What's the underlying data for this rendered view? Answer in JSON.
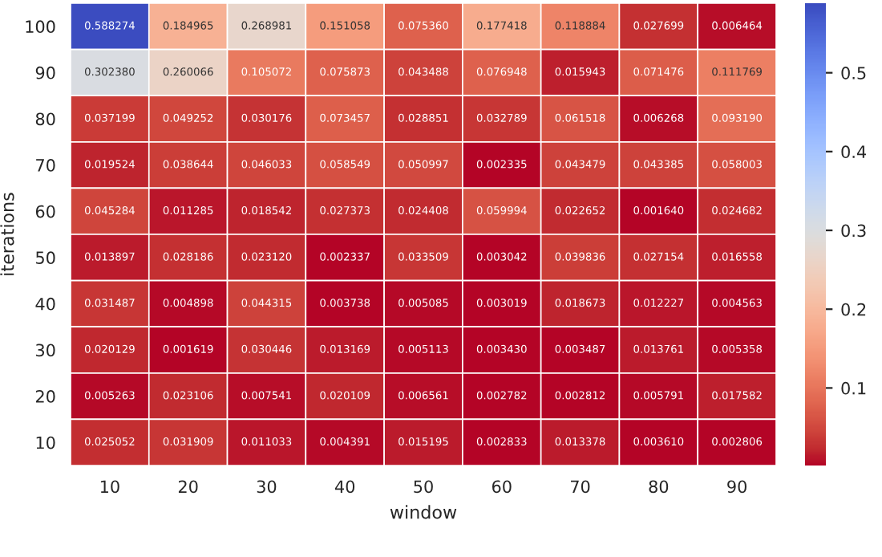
{
  "chart_data": {
    "type": "heatmap",
    "xlabel": "window",
    "ylabel": "iterations",
    "categories": [
      "10",
      "20",
      "30",
      "40",
      "50",
      "60",
      "70",
      "80",
      "90"
    ],
    "y_categories": [
      "100",
      "90",
      "80",
      "70",
      "60",
      "50",
      "40",
      "30",
      "20",
      "10"
    ],
    "cells": [
      [
        0.588274,
        0.184965,
        0.268981,
        0.151058,
        0.07536,
        0.177418,
        0.118884,
        0.027699,
        0.006464
      ],
      [
        0.30238,
        0.260066,
        0.105072,
        0.075873,
        0.043488,
        0.076948,
        0.015943,
        0.071476,
        0.111769
      ],
      [
        0.037199,
        0.049252,
        0.030176,
        0.073457,
        0.028851,
        0.032789,
        0.061518,
        0.006268,
        0.09319
      ],
      [
        0.019524,
        0.038644,
        0.046033,
        0.058549,
        0.050997,
        0.002335,
        0.043479,
        0.043385,
        0.058003
      ],
      [
        0.045284,
        0.011285,
        0.018542,
        0.027373,
        0.024408,
        0.059994,
        0.022652,
        0.00164,
        0.024682
      ],
      [
        0.013897,
        0.028186,
        0.02312,
        0.002337,
        0.033509,
        0.003042,
        0.039836,
        0.027154,
        0.016558
      ],
      [
        0.031487,
        0.004898,
        0.044315,
        0.003738,
        0.005085,
        0.003019,
        0.018673,
        0.012227,
        0.004563
      ],
      [
        0.020129,
        0.001619,
        0.030446,
        0.013169,
        0.005113,
        0.00343,
        0.003487,
        0.013761,
        0.005358
      ],
      [
        0.005263,
        0.023106,
        0.007541,
        0.020109,
        0.006561,
        0.002782,
        0.002812,
        0.005791,
        0.017582
      ],
      [
        0.025052,
        0.031909,
        0.011033,
        0.004391,
        0.015195,
        0.002833,
        0.013378,
        0.00361,
        0.002806
      ]
    ],
    "cell_labels": [
      [
        "0.588274",
        "0.184965",
        "0.268981",
        "0.151058",
        "0.075360",
        "0.177418",
        "0.118884",
        "0.027699",
        "0.006464"
      ],
      [
        "0.302380",
        "0.260066",
        "0.105072",
        "0.075873",
        "0.043488",
        "0.076948",
        "0.015943",
        "0.071476",
        "0.111769"
      ],
      [
        "0.037199",
        "0.049252",
        "0.030176",
        "0.073457",
        "0.028851",
        "0.032789",
        "0.061518",
        "0.006268",
        "0.093190"
      ],
      [
        "0.019524",
        "0.038644",
        "0.046033",
        "0.058549",
        "0.050997",
        "0.002335",
        "0.043479",
        "0.043385",
        "0.058003"
      ],
      [
        "0.045284",
        "0.011285",
        "0.018542",
        "0.027373",
        "0.024408",
        "0.059994",
        "0.022652",
        "0.001640",
        "0.024682"
      ],
      [
        "0.013897",
        "0.028186",
        "0.023120",
        "0.002337",
        "0.033509",
        "0.003042",
        "0.039836",
        "0.027154",
        "0.016558"
      ],
      [
        "0.031487",
        "0.004898",
        "0.044315",
        "0.003738",
        "0.005085",
        "0.003019",
        "0.018673",
        "0.012227",
        "0.004563"
      ],
      [
        "0.020129",
        "0.001619",
        "0.030446",
        "0.013169",
        "0.005113",
        "0.003430",
        "0.003487",
        "0.013761",
        "0.005358"
      ],
      [
        "0.005263",
        "0.023106",
        "0.007541",
        "0.020109",
        "0.006561",
        "0.002782",
        "0.002812",
        "0.005791",
        "0.017582"
      ],
      [
        "0.025052",
        "0.031909",
        "0.011033",
        "0.004391",
        "0.015195",
        "0.002833",
        "0.013378",
        "0.003610",
        "0.002806"
      ]
    ],
    "clim": [
      0.001619,
      0.588274
    ],
    "cticks": [
      0.1,
      0.2,
      0.3,
      0.4,
      0.5
    ]
  }
}
